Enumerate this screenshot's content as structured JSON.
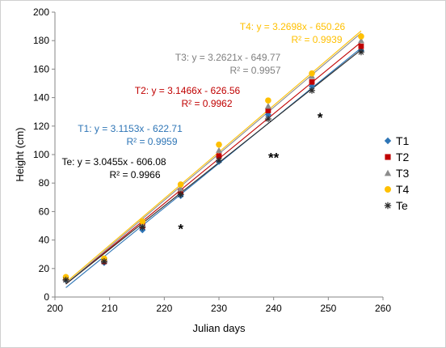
{
  "chart_data": {
    "type": "scatter",
    "title": "",
    "xlabel": "Julian days",
    "ylabel": "Height (cm)",
    "xlim": [
      200,
      260
    ],
    "ylim": [
      0,
      200
    ],
    "x_ticks": [
      "200",
      "210",
      "220",
      "230",
      "240",
      "250",
      "260"
    ],
    "y_ticks": [
      "0",
      "20",
      "40",
      "60",
      "80",
      "100",
      "120",
      "140",
      "160",
      "180",
      "200"
    ],
    "grid": false,
    "legend_position": "right",
    "x": [
      202,
      209,
      216,
      223,
      230,
      239,
      247,
      256
    ],
    "series": [
      {
        "name": "T1",
        "color": "#2E75B6",
        "marker": "diamond",
        "values": [
          12,
          24,
          47,
          71,
          95,
          128,
          148,
          173
        ],
        "trendline": {
          "slope": 3.1153,
          "intercept": -622.71,
          "equation": "T1: y = 3.1153x - 622.71",
          "r2": "R² = 0.9959"
        }
      },
      {
        "name": "T2",
        "color": "#C00000",
        "marker": "square",
        "values": [
          13,
          25,
          50,
          74,
          99,
          131,
          151,
          176
        ],
        "trendline": {
          "slope": 3.1466,
          "intercept": -626.56,
          "equation": "T2: y = 3.1466x - 626.56",
          "r2": "R² = 0.9962"
        }
      },
      {
        "name": "T3",
        "color": "#8C8C8C",
        "marker": "triangle",
        "values": [
          13,
          26,
          51,
          76,
          103,
          134,
          155,
          180
        ],
        "trendline": {
          "slope": 3.2621,
          "intercept": -649.77,
          "equation": "T3: y = 3.2621x - 649.77",
          "r2": "R² = 0.9957"
        }
      },
      {
        "name": "T4",
        "color": "#FFC000",
        "marker": "circle",
        "values": [
          14,
          27,
          53,
          79,
          107,
          138,
          157,
          183
        ],
        "trendline": {
          "slope": 3.2698,
          "intercept": -650.26,
          "equation": "T4: y = 3.2698x - 650.26",
          "r2": "R² = 0.9939"
        }
      },
      {
        "name": "Te",
        "color": "#2B2B2B",
        "marker": "star",
        "values": [
          12,
          25,
          49,
          72,
          96,
          125,
          145,
          172
        ],
        "trendline": {
          "slope": 3.0455,
          "intercept": -606.08,
          "equation": "Te: y = 3.0455x - 606.08",
          "r2": "R² = 0.9966"
        }
      }
    ],
    "annotations": [
      {
        "text": "*",
        "x": 223,
        "y": 48
      },
      {
        "text": "**",
        "x": 240,
        "y": 98
      },
      {
        "text": "*",
        "x": 248.5,
        "y": 126
      }
    ]
  }
}
